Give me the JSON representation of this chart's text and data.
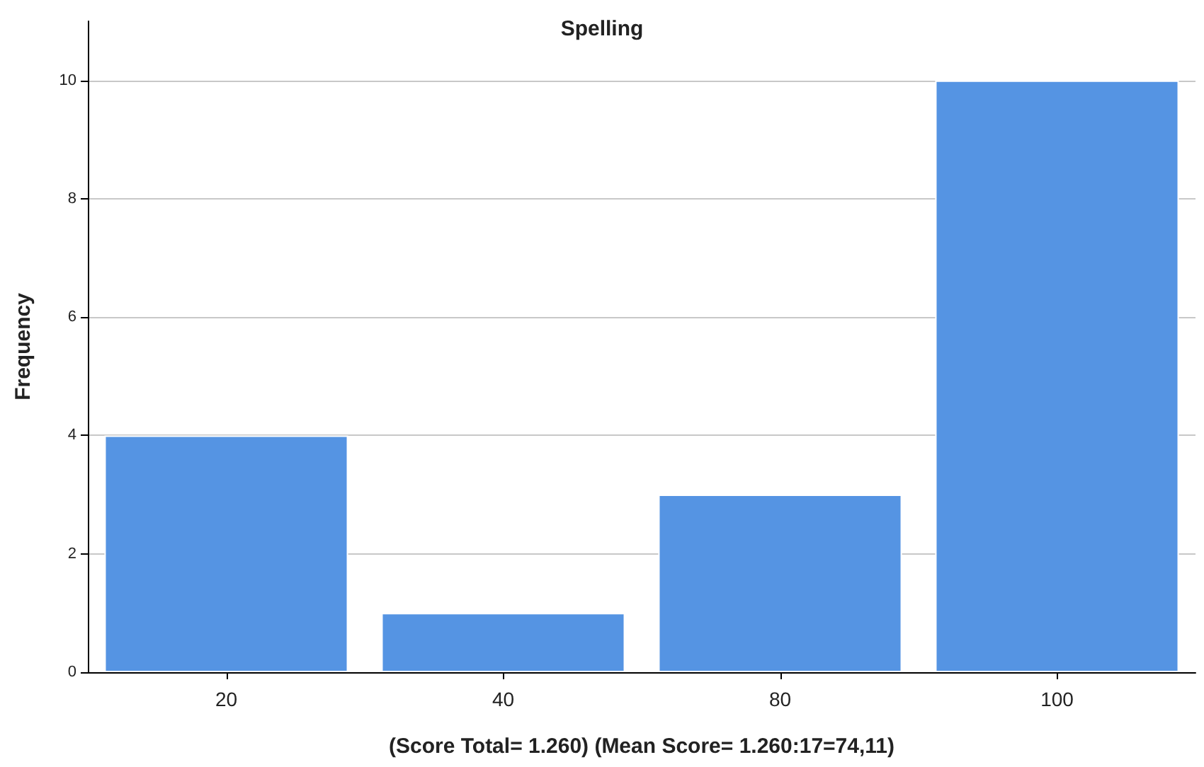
{
  "chart_data": {
    "type": "bar",
    "title": "Spelling",
    "xlabel": "(Score Total= 1.260) (Mean Score= 1.260:17=74,11)",
    "ylabel": "Frequency",
    "categories": [
      "20",
      "40",
      "80",
      "100"
    ],
    "values": [
      4,
      1,
      3,
      10
    ],
    "color": "#5594e3",
    "ylim": [
      0,
      11
    ],
    "yticks": [
      0,
      2,
      4,
      6,
      8,
      10
    ],
    "grid": "y"
  }
}
